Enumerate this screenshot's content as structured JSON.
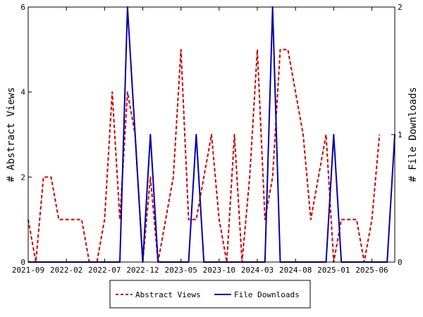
{
  "chart_data": {
    "type": "line",
    "x_tick_labels": [
      "2021-09",
      "2022-02",
      "2022-07",
      "2022-12",
      "2023-05",
      "2023-10",
      "2024-03",
      "2024-08",
      "2025-01",
      "2025-06"
    ],
    "ylabel_left": "# Abstract Views",
    "ylabel_right": "# File Downloads",
    "ylim_left": [
      0,
      6
    ],
    "ylim_right": [
      0,
      2
    ],
    "yticks_left": [
      "0",
      "2",
      "4",
      "6"
    ],
    "yticks_right": [
      "0",
      "1",
      "2"
    ],
    "x_range": [
      "2021-09",
      "2025-09"
    ],
    "grid": false,
    "legend_position": "bottom",
    "series": [
      {
        "name": "Abstract Views",
        "axis": "left",
        "color": "#cc0000",
        "style": "dashed",
        "points": [
          [
            "2021-09",
            1
          ],
          [
            "2021-10",
            0
          ],
          [
            "2021-11",
            2
          ],
          [
            "2021-12",
            2
          ],
          [
            "2022-01",
            1
          ],
          [
            "2022-02",
            1
          ],
          [
            "2022-03",
            1
          ],
          [
            "2022-04",
            1
          ],
          [
            "2022-05",
            0
          ],
          [
            "2022-06",
            0
          ],
          [
            "2022-07",
            1
          ],
          [
            "2022-08",
            4
          ],
          [
            "2022-09",
            1
          ],
          [
            "2022-10",
            4
          ],
          [
            "2022-11",
            3
          ],
          [
            "2022-12",
            0
          ],
          [
            "2023-01",
            2
          ],
          [
            "2023-02",
            0
          ],
          [
            "2023-03",
            1
          ],
          [
            "2023-04",
            2
          ],
          [
            "2023-05",
            5
          ],
          [
            "2023-06",
            1
          ],
          [
            "2023-07",
            1
          ],
          [
            "2023-08",
            2
          ],
          [
            "2023-09",
            3
          ],
          [
            "2023-10",
            1
          ],
          [
            "2023-11",
            0
          ],
          [
            "2023-12",
            3
          ],
          [
            "2024-01",
            0
          ],
          [
            "2024-02",
            2
          ],
          [
            "2024-03",
            5
          ],
          [
            "2024-04",
            1
          ],
          [
            "2024-05",
            2
          ],
          [
            "2024-06",
            5
          ],
          [
            "2024-07",
            5
          ],
          [
            "2024-08",
            4
          ],
          [
            "2024-09",
            3
          ],
          [
            "2024-10",
            1
          ],
          [
            "2024-11",
            2
          ],
          [
            "2024-12",
            3
          ],
          [
            "2025-01",
            0
          ],
          [
            "2025-02",
            1
          ],
          [
            "2025-03",
            1
          ],
          [
            "2025-04",
            1
          ],
          [
            "2025-05",
            0
          ],
          [
            "2025-06",
            1
          ],
          [
            "2025-07",
            3
          ]
        ]
      },
      {
        "name": "File Downloads",
        "axis": "right",
        "color": "#0000aa",
        "style": "solid",
        "points": [
          [
            "2021-09",
            0
          ],
          [
            "2021-10",
            0
          ],
          [
            "2021-11",
            0
          ],
          [
            "2021-12",
            0
          ],
          [
            "2022-01",
            0
          ],
          [
            "2022-02",
            0
          ],
          [
            "2022-03",
            0
          ],
          [
            "2022-04",
            0
          ],
          [
            "2022-05",
            0
          ],
          [
            "2022-06",
            0
          ],
          [
            "2022-07",
            0
          ],
          [
            "2022-08",
            0
          ],
          [
            "2022-09",
            0
          ],
          [
            "2022-10",
            2
          ],
          [
            "2022-11",
            1
          ],
          [
            "2022-12",
            0
          ],
          [
            "2023-01",
            1
          ],
          [
            "2023-02",
            0
          ],
          [
            "2023-03",
            0
          ],
          [
            "2023-04",
            0
          ],
          [
            "2023-05",
            0
          ],
          [
            "2023-06",
            0
          ],
          [
            "2023-07",
            1
          ],
          [
            "2023-08",
            0
          ],
          [
            "2023-09",
            0
          ],
          [
            "2023-10",
            0
          ],
          [
            "2023-11",
            0
          ],
          [
            "2023-12",
            0
          ],
          [
            "2024-01",
            0
          ],
          [
            "2024-02",
            0
          ],
          [
            "2024-03",
            0
          ],
          [
            "2024-04",
            0
          ],
          [
            "2024-05",
            2
          ],
          [
            "2024-06",
            0
          ],
          [
            "2024-07",
            0
          ],
          [
            "2024-08",
            0
          ],
          [
            "2024-09",
            0
          ],
          [
            "2024-10",
            0
          ],
          [
            "2024-11",
            0
          ],
          [
            "2024-12",
            0
          ],
          [
            "2025-01",
            1
          ],
          [
            "2025-02",
            0
          ],
          [
            "2025-03",
            0
          ],
          [
            "2025-04",
            0
          ],
          [
            "2025-05",
            0
          ],
          [
            "2025-06",
            0
          ],
          [
            "2025-07",
            0
          ],
          [
            "2025-08",
            0
          ],
          [
            "2025-09",
            1
          ]
        ]
      }
    ]
  }
}
